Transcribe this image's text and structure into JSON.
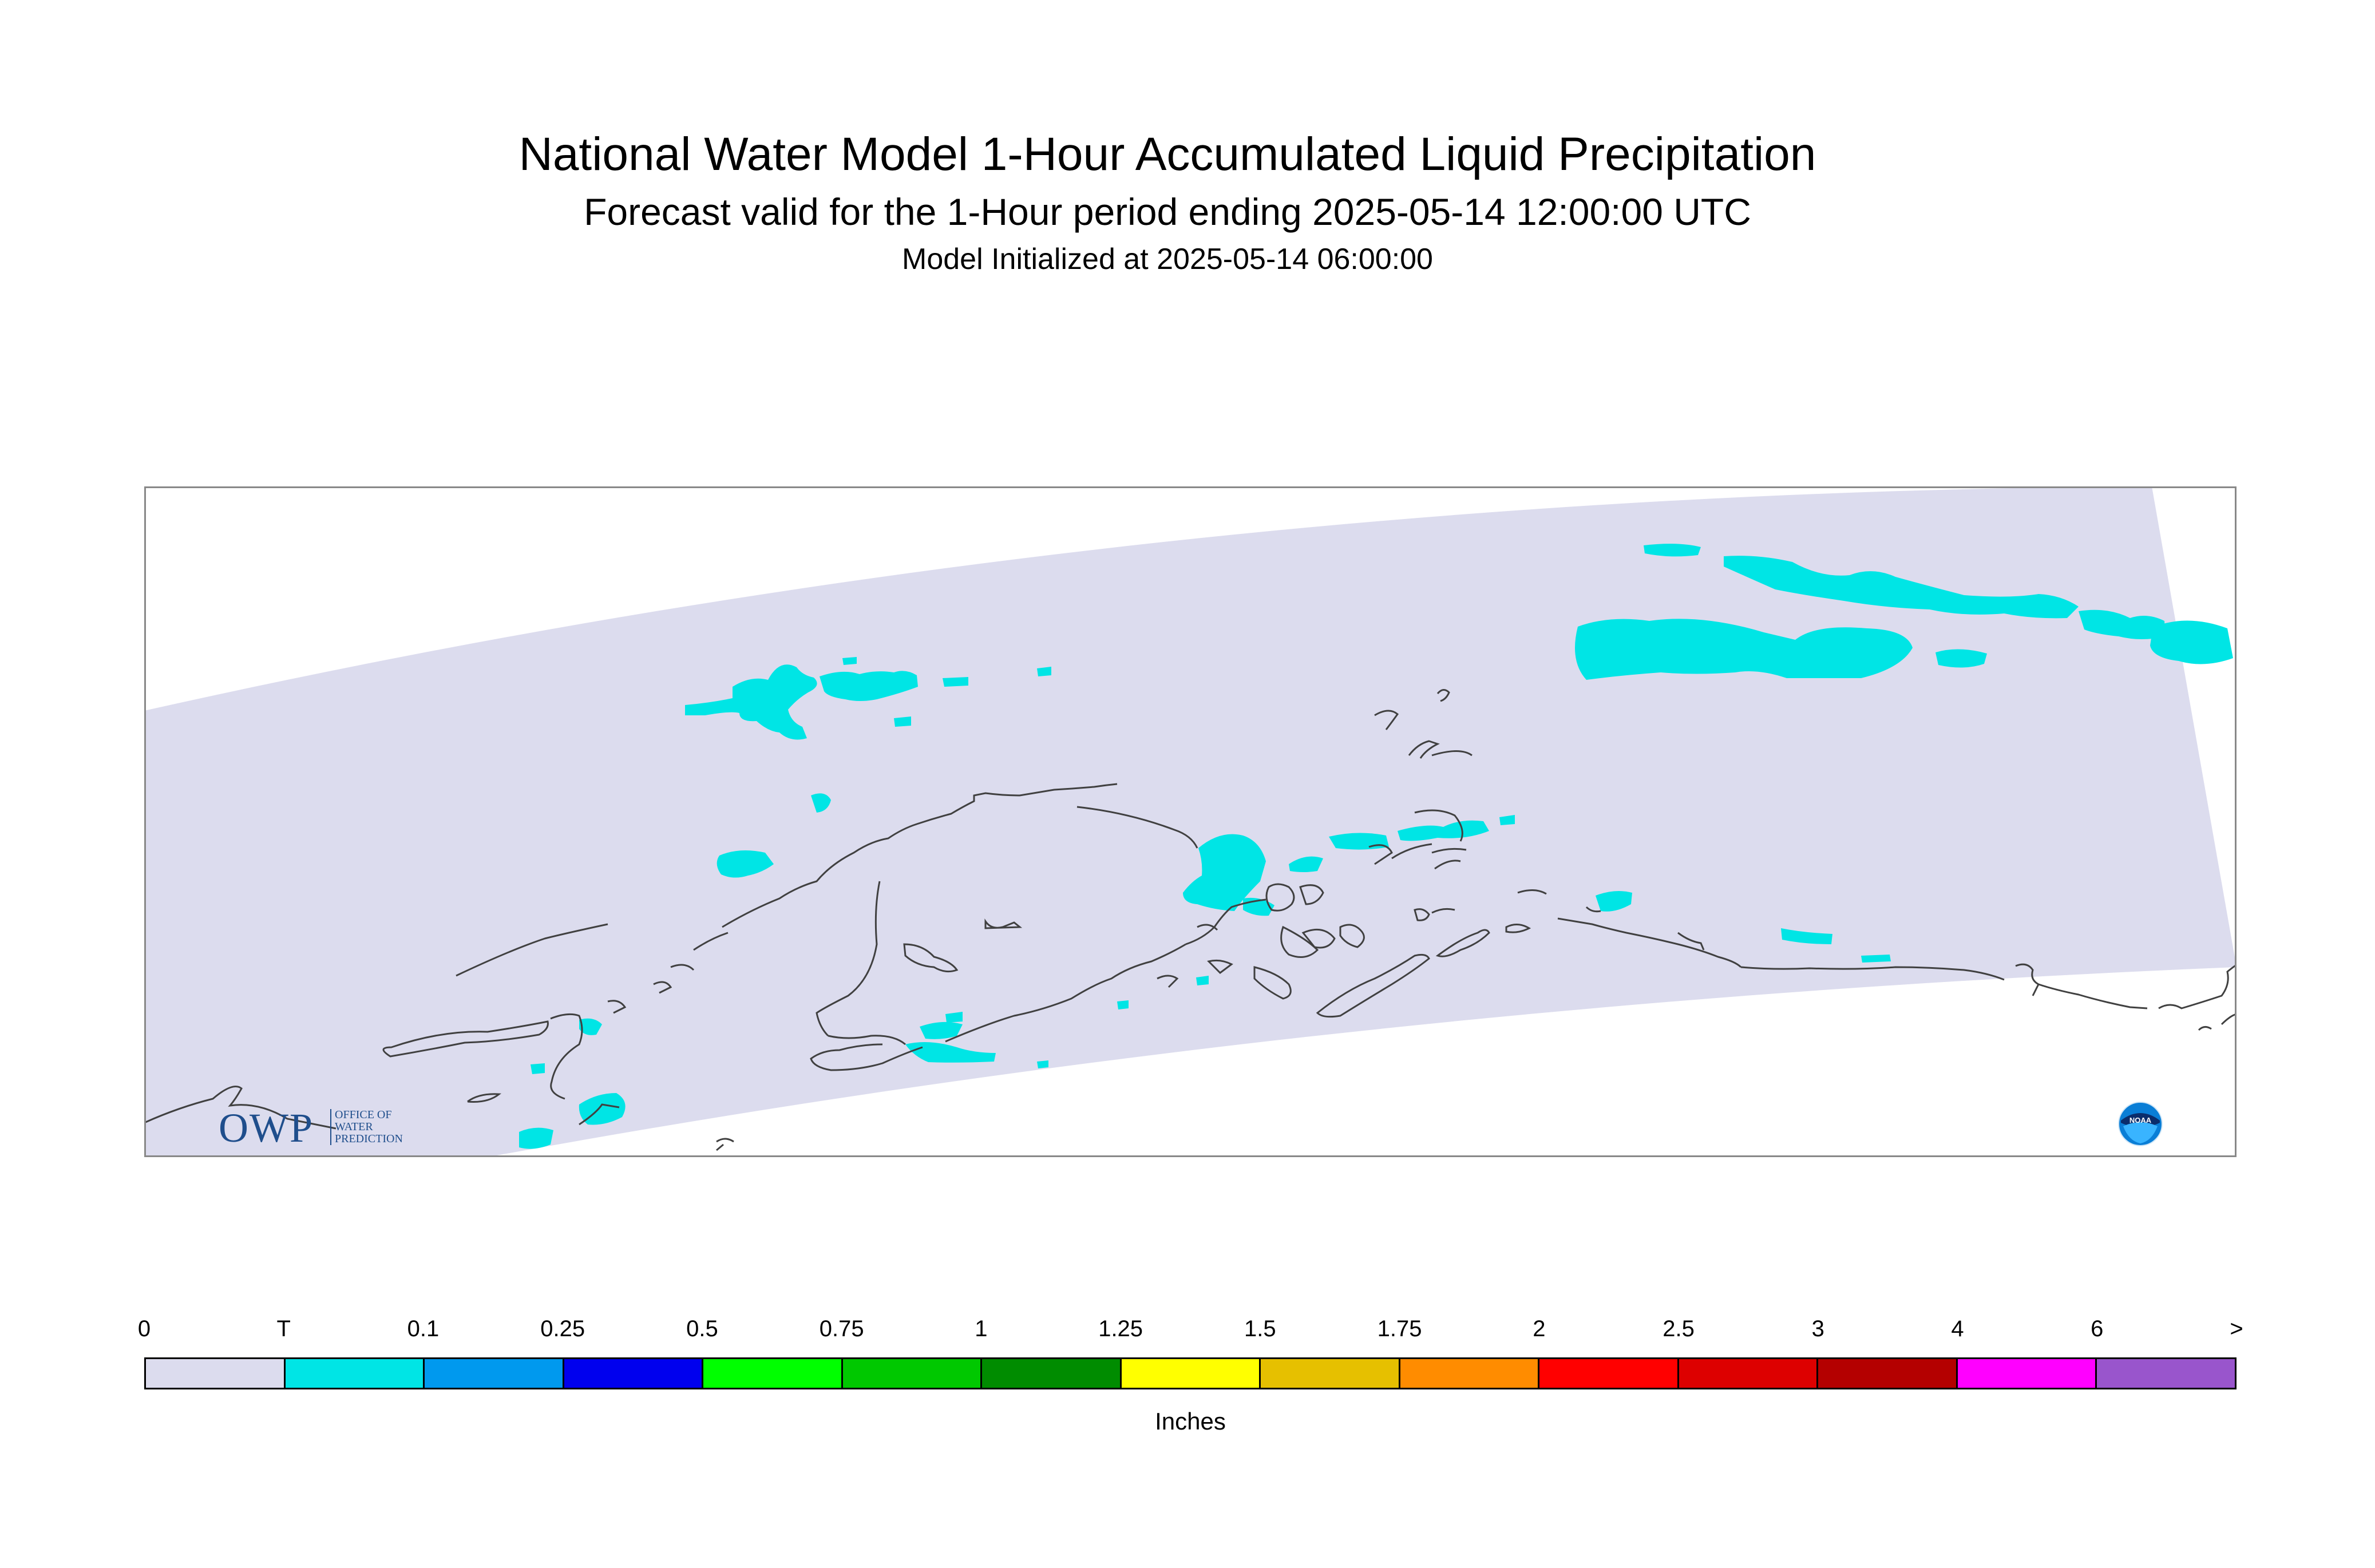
{
  "title": "National Water Model 1-Hour Accumulated Liquid Precipitation",
  "subtitle": "Forecast valid for the 1-Hour period ending 2025-05-14 12:00:00 UTC",
  "initialized": "Model Initialized at 2025-05-14 06:00:00",
  "logos": {
    "owp_mark": "OWP",
    "owp_text": [
      "OFFICE OF",
      "WATER",
      "PREDICTION"
    ],
    "noaa_text": "NOAA"
  },
  "colors": {
    "domain": "#dcdcee",
    "precip_trace": "#00e5e5",
    "coastline": "#404040",
    "frame": "#888888"
  },
  "legend": {
    "tick_labels": [
      "0",
      "T",
      "0.1",
      "0.25",
      "0.5",
      "0.75",
      "1",
      "1.25",
      "1.5",
      "1.75",
      "2",
      "2.5",
      "3",
      "4",
      "6",
      ">"
    ],
    "colors": [
      "#dcdcee",
      "#00e5e5",
      "#0099ee",
      "#0000ee",
      "#00ff00",
      "#00c800",
      "#008c00",
      "#ffff00",
      "#e6c000",
      "#ff8c00",
      "#ff0000",
      "#dd0000",
      "#b40000",
      "#ff00ff",
      "#9955cc"
    ],
    "units": "Inches"
  }
}
